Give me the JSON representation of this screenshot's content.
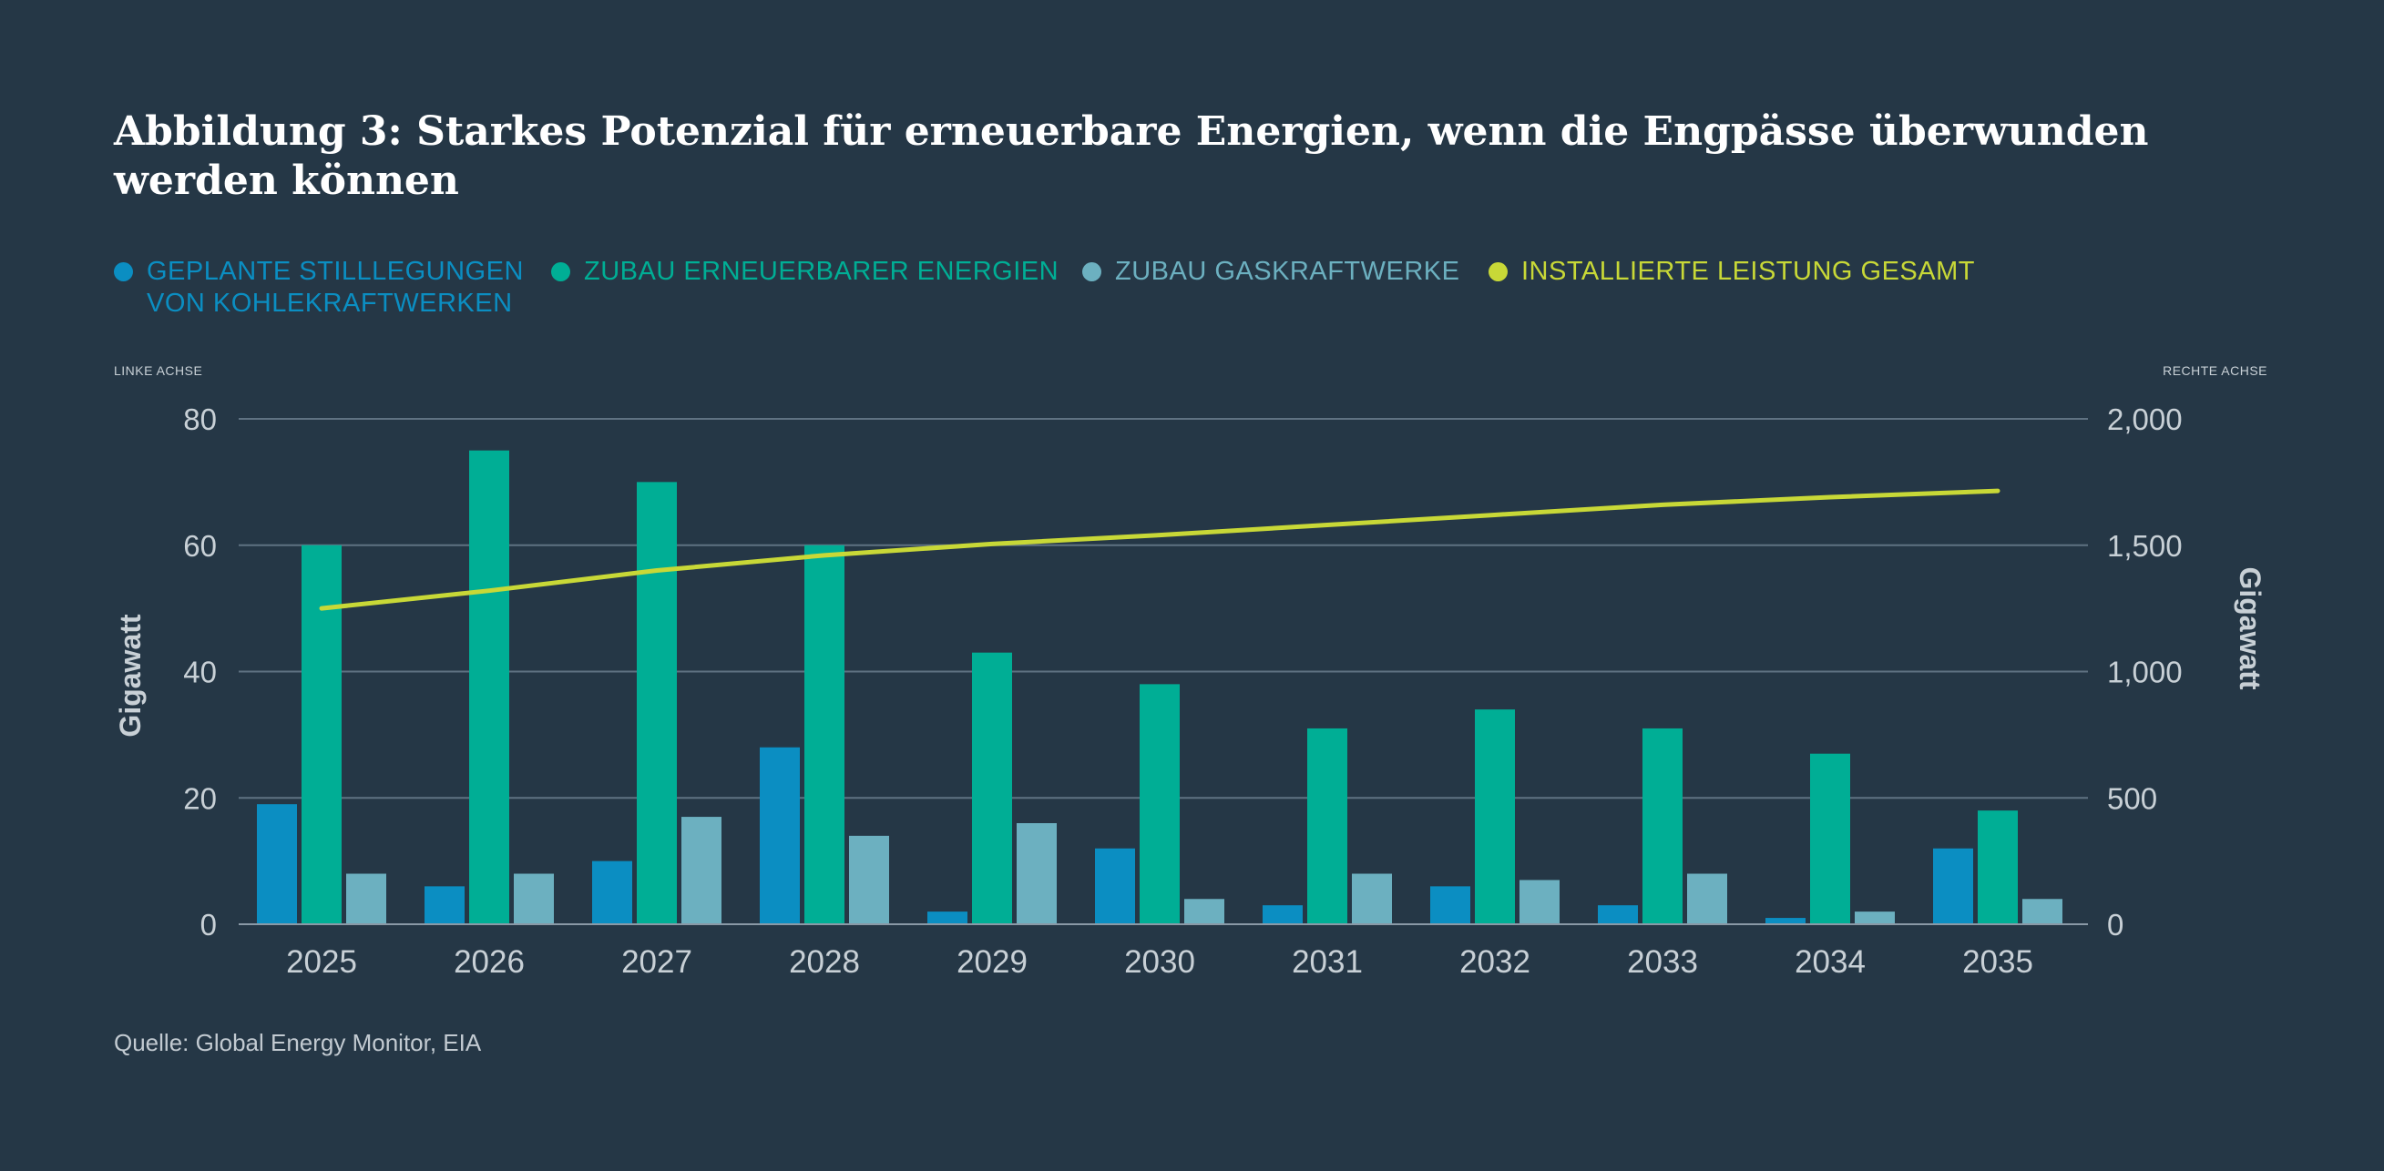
{
  "title": "Abbildung 3: Starkes Potenzial für erneuerbare Energien, wenn die Engpässe überwunden werden können",
  "legend": [
    {
      "label": "GEPLANTE STILLLEGUNGEN\nVON KOHLEKRAFTWERKEN",
      "color": "#0B8EC2"
    },
    {
      "label": "ZUBAU ERNEUERBARER ENERGIEN",
      "color": "#00AE95"
    },
    {
      "label": "ZUBAU GASKRAFTWERKE",
      "color": "#6CB0C0"
    },
    {
      "label": "INSTALLIERTE LEISTUNG GESAMT",
      "color": "#C8D837"
    }
  ],
  "left_axis_note": "LINKE ACHSE",
  "right_axis_note": "RECHTE ACHSE",
  "source": "Quelle: Global Energy Monitor, EIA",
  "colors": {
    "background": "#253746",
    "grid": "#5f7282",
    "tick_text": "#c8d0d6"
  },
  "chart_data": {
    "type": "bar",
    "title": "Abbildung 3: Starkes Potenzial für erneuerbare Energien, wenn die Engpässe überwunden werden können",
    "categories": [
      "2025",
      "2026",
      "2027",
      "2028",
      "2029",
      "2030",
      "2031",
      "2032",
      "2033",
      "2034",
      "2035"
    ],
    "series": [
      {
        "name": "GEPLANTE STILLLEGUNGEN VON KOHLEKRAFTWERKEN",
        "axis": "left",
        "type": "bar",
        "color": "#0B8EC2",
        "values": [
          19,
          6,
          10,
          28,
          2,
          12,
          3,
          6,
          3,
          1,
          12
        ]
      },
      {
        "name": "ZUBAU ERNEUERBARER ENERGIEN",
        "axis": "left",
        "type": "bar",
        "color": "#00AE95",
        "values": [
          60,
          75,
          70,
          60,
          43,
          38,
          31,
          34,
          31,
          27,
          18
        ]
      },
      {
        "name": "ZUBAU GASKRAFTWERKE",
        "axis": "left",
        "type": "bar",
        "color": "#6CB0C0",
        "values": [
          8,
          8,
          17,
          14,
          16,
          4,
          8,
          7,
          8,
          2,
          4
        ]
      },
      {
        "name": "INSTALLIERTE LEISTUNG GESAMT",
        "axis": "right",
        "type": "line",
        "color": "#C8D837",
        "values": [
          1250,
          1320,
          1400,
          1460,
          1505,
          1540,
          1580,
          1620,
          1660,
          1690,
          1715
        ]
      }
    ],
    "ylabel": "Gigawatt",
    "ylabel_right": "Gigawatt",
    "ylim": [
      0,
      80
    ],
    "ylim_right": [
      0,
      2000
    ],
    "yticks": [
      "0",
      "20",
      "40",
      "60",
      "80"
    ],
    "yticks_right": [
      "0",
      "500",
      "1,000",
      "1,500",
      "2,000"
    ],
    "grid": true,
    "legend_position": "top"
  }
}
